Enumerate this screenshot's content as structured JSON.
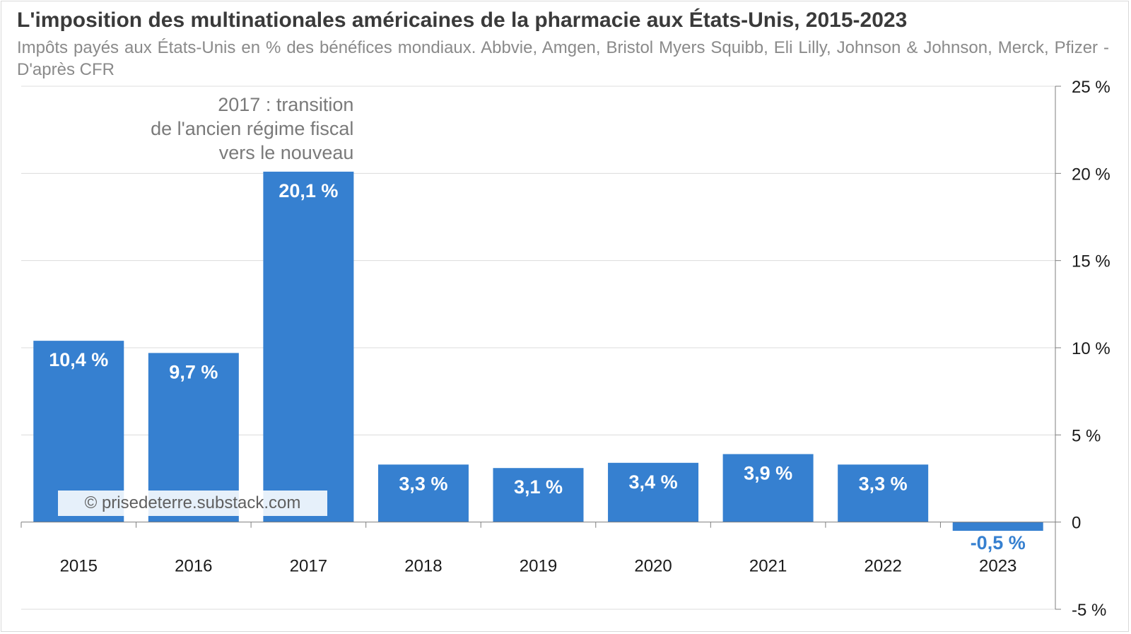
{
  "header": {
    "title": "L'imposition des multinationales américaines de la pharmacie aux États-Unis, 2015-2023",
    "subtitle": "Impôts payés aux États-Unis en % des bénéfices mondiaux. Abbvie, Amgen, Bristol Myers Squibb, Eli Lilly, Johnson & Johnson, Merck, Pfizer - D'après CFR"
  },
  "watermark": "© prisedeterre.substack.com",
  "colors": {
    "bar": "#3680d0",
    "bar_label": "#ffffff",
    "negative_label": "#3680d0",
    "grid": "#dcdcdc",
    "axis": "#7f7f7f",
    "tick_text": "#1a1a1a",
    "annotation": "#7a7a7a"
  },
  "chart_data": {
    "type": "bar",
    "title": "L'imposition des multinationales américaines de la pharmacie aux États-Unis, 2015-2023",
    "xlabel": "",
    "ylabel": "",
    "categories": [
      "2015",
      "2016",
      "2017",
      "2018",
      "2019",
      "2020",
      "2021",
      "2022",
      "2023"
    ],
    "values": [
      10.4,
      9.7,
      20.1,
      3.3,
      3.1,
      3.4,
      3.9,
      3.3,
      -0.5
    ],
    "data_labels": [
      "10,4 %",
      "9,7 %",
      "20,1 %",
      "3,3 %",
      "3,1 %",
      "3,4 %",
      "3,9 %",
      "3,3 %",
      "-0,5 %"
    ],
    "ylim": [
      -5,
      25
    ],
    "yticks": [
      -5,
      0,
      5,
      10,
      15,
      20,
      25
    ],
    "ytick_labels": [
      "-5 %",
      "0",
      "5 %",
      "10 %",
      "15 %",
      "20 %",
      "25 %"
    ],
    "y_axis_side": "right",
    "grid": true,
    "annotation": {
      "category": "2017",
      "lines": [
        "2017 : transition",
        "de l'ancien régime fiscal",
        "vers le nouveau"
      ]
    }
  }
}
